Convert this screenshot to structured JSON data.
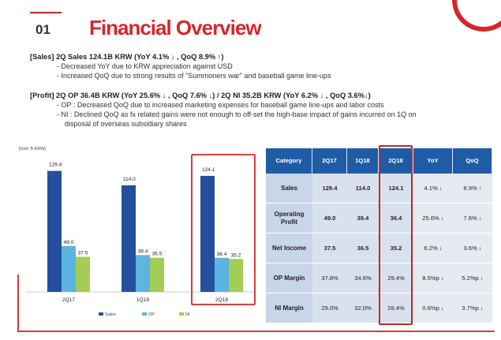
{
  "header": {
    "section_number": "01",
    "title": "Financial Overview"
  },
  "sales": {
    "headline": "[Sales] 2Q Sales 124.1B KRW (YoY 4.1% ↓ , QoQ 8.9% ↑)",
    "bullets": [
      "- Decreased YoY due to KRW appreciation against USD",
      "- Increased QoQ due to strong results of \"Summoners war\" and baseball game line-ups"
    ]
  },
  "profit": {
    "headline": "[Profit] 2Q OP 36.4B KRW (YoY 25.6% ↓ , QoQ 7.6% ↓) / 2Q NI 35.2B KRW (YoY 6.2% ↓ , QoQ 3.6%↓)",
    "bullets": [
      "- OP : Decreased QoQ due to increased marketing expenses for baseball game line-ups and labor costs",
      "- NI : Declined QoQ as fx related gains were not enough to off-set the high-base impact of gains incurred on 1Q on",
      "disposal of overseas subsidiary shares"
    ]
  },
  "colors": {
    "accent": "#d7262b",
    "sales": "#244f9e",
    "op": "#5bb5e0",
    "ni": "#a3cd54",
    "table_header": "#1f5ca6"
  },
  "chart_data": {
    "type": "bar",
    "unit_label": "[Unit: B KRW]",
    "categories": [
      "2Q17",
      "1Q18",
      "2Q18"
    ],
    "series": [
      {
        "name": "Sales",
        "values": [
          129.4,
          114.0,
          124.1
        ]
      },
      {
        "name": "OP",
        "values": [
          49.0,
          39.4,
          36.4
        ]
      },
      {
        "name": "NI",
        "values": [
          37.5,
          36.5,
          35.2
        ]
      }
    ],
    "value_labels": [
      [
        "129.4",
        "49.0",
        "37.5"
      ],
      [
        "114.0",
        "39.4",
        "36.5"
      ],
      [
        "124.1",
        "36.4",
        "35.2"
      ]
    ],
    "highlighted_category": "2Q18",
    "legend_position": "bottom",
    "grid": false
  },
  "table": {
    "headers": [
      "Category",
      "2Q17",
      "1Q18",
      "2Q18",
      "YoY",
      "QoQ"
    ],
    "rows": [
      [
        "Sales",
        "129.4",
        "114.0",
        "124.1",
        "4.1% ↓",
        "8.9% ↑"
      ],
      [
        "Operating Profit",
        "49.0",
        "39.4",
        "36.4",
        "25.6% ↓",
        "7.6% ↓"
      ],
      [
        "Net Income",
        "37.5",
        "36.5",
        "35.2",
        "6.2% ↓",
        "3.6% ↓"
      ],
      [
        "OP Margin",
        "37.8%",
        "34.6%",
        "29.4%",
        "8.5%p ↓",
        "5.2%p ↓"
      ],
      [
        "NI Margin",
        "29.0%",
        "32.0%",
        "28.4%",
        "0.6%p ↓",
        "3.7%p ↓"
      ]
    ]
  }
}
